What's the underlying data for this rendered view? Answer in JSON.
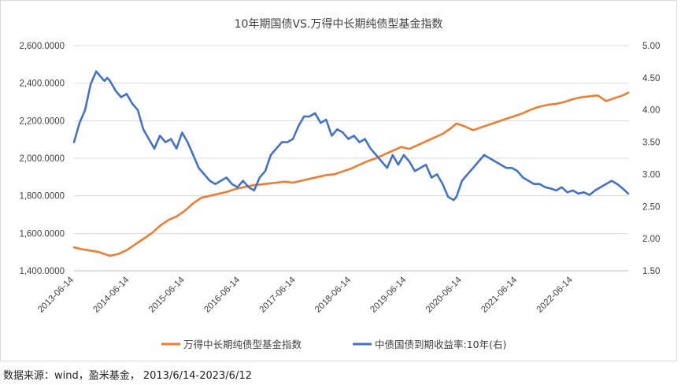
{
  "chart_data": {
    "type": "line",
    "title": "10年期国债VS.万得中长期纯债型基金指数",
    "x_tick_labels": [
      "2013-06-14",
      "2014-06-14",
      "2015-06-14",
      "2016-06-14",
      "2017-06-14",
      "2018-06-14",
      "2019-06-14",
      "2020-06-14",
      "2021-06-14",
      "2022-06-14"
    ],
    "x_range": [
      2013.45,
      2023.45
    ],
    "y_left": {
      "ticks": [
        "1,400.0000",
        "1,600.0000",
        "1,800.0000",
        "2,000.0000",
        "2,200.0000",
        "2,400.0000",
        "2,600.0000"
      ],
      "range": [
        1400,
        2600
      ]
    },
    "y_right": {
      "ticks": [
        "1.50",
        "2.00",
        "2.50",
        "3.00",
        "3.50",
        "4.00",
        "4.50",
        "5.00"
      ],
      "range": [
        1.5,
        5.0
      ]
    },
    "legend_placement": "bottom",
    "grid": "horizontal",
    "series": [
      {
        "name": "万得中长期纯债型基金指数",
        "axis": "left",
        "color": "#ED7D31",
        "x": [
          2013.45,
          2013.6,
          2013.75,
          2013.9,
          2014.0,
          2014.1,
          2014.25,
          2014.4,
          2014.55,
          2014.7,
          2014.85,
          2015.0,
          2015.15,
          2015.3,
          2015.45,
          2015.6,
          2015.75,
          2015.9,
          2016.05,
          2016.2,
          2016.35,
          2016.5,
          2016.65,
          2016.8,
          2016.95,
          2017.1,
          2017.25,
          2017.4,
          2017.55,
          2017.7,
          2017.85,
          2018.0,
          2018.15,
          2018.3,
          2018.45,
          2018.6,
          2018.75,
          2018.9,
          2019.05,
          2019.2,
          2019.35,
          2019.5,
          2019.65,
          2019.8,
          2019.95,
          2020.1,
          2020.25,
          2020.35,
          2020.5,
          2020.65,
          2020.8,
          2020.95,
          2021.1,
          2021.25,
          2021.4,
          2021.55,
          2021.7,
          2021.85,
          2022.0,
          2022.15,
          2022.3,
          2022.45,
          2022.6,
          2022.75,
          2022.9,
          2023.05,
          2023.2,
          2023.35,
          2023.45
        ],
        "values": [
          1525,
          1515,
          1508,
          1500,
          1490,
          1480,
          1490,
          1510,
          1540,
          1570,
          1600,
          1640,
          1670,
          1690,
          1720,
          1760,
          1790,
          1800,
          1810,
          1820,
          1835,
          1845,
          1855,
          1860,
          1865,
          1870,
          1875,
          1870,
          1880,
          1890,
          1900,
          1910,
          1915,
          1930,
          1945,
          1965,
          1985,
          2000,
          2020,
          2040,
          2060,
          2050,
          2070,
          2090,
          2110,
          2130,
          2160,
          2185,
          2170,
          2150,
          2165,
          2180,
          2195,
          2210,
          2225,
          2240,
          2260,
          2275,
          2285,
          2290,
          2300,
          2315,
          2325,
          2330,
          2335,
          2305,
          2320,
          2335,
          2350
        ]
      },
      {
        "name": "中债国债到期收益率:10年(右)",
        "axis": "right",
        "color": "#4472C4",
        "x": [
          2013.45,
          2013.55,
          2013.65,
          2013.75,
          2013.85,
          2013.95,
          2014.0,
          2014.05,
          2014.1,
          2014.2,
          2014.3,
          2014.4,
          2014.5,
          2014.6,
          2014.7,
          2014.8,
          2014.9,
          2015.0,
          2015.1,
          2015.2,
          2015.3,
          2015.4,
          2015.5,
          2015.6,
          2015.7,
          2015.8,
          2015.9,
          2016.0,
          2016.1,
          2016.2,
          2016.3,
          2016.4,
          2016.5,
          2016.6,
          2016.7,
          2016.8,
          2016.9,
          2017.0,
          2017.1,
          2017.2,
          2017.3,
          2017.4,
          2017.5,
          2017.6,
          2017.7,
          2017.8,
          2017.9,
          2018.0,
          2018.1,
          2018.2,
          2018.3,
          2018.4,
          2018.5,
          2018.6,
          2018.7,
          2018.8,
          2018.9,
          2019.0,
          2019.1,
          2019.2,
          2019.3,
          2019.4,
          2019.5,
          2019.6,
          2019.7,
          2019.8,
          2019.9,
          2020.0,
          2020.1,
          2020.2,
          2020.3,
          2020.35,
          2020.45,
          2020.55,
          2020.65,
          2020.75,
          2020.85,
          2020.95,
          2021.05,
          2021.15,
          2021.25,
          2021.35,
          2021.45,
          2021.55,
          2021.65,
          2021.75,
          2021.85,
          2021.95,
          2022.05,
          2022.15,
          2022.25,
          2022.35,
          2022.45,
          2022.55,
          2022.65,
          2022.75,
          2022.85,
          2022.95,
          2023.05,
          2023.15,
          2023.25,
          2023.35,
          2023.45
        ],
        "values": [
          3.5,
          3.8,
          4.0,
          4.4,
          4.6,
          4.5,
          4.45,
          4.5,
          4.45,
          4.3,
          4.2,
          4.25,
          4.1,
          4.0,
          3.7,
          3.55,
          3.4,
          3.6,
          3.5,
          3.55,
          3.4,
          3.65,
          3.5,
          3.3,
          3.1,
          3.0,
          2.9,
          2.85,
          2.9,
          2.95,
          2.85,
          2.8,
          2.9,
          2.8,
          2.75,
          2.95,
          3.05,
          3.3,
          3.4,
          3.5,
          3.5,
          3.55,
          3.75,
          3.9,
          3.9,
          3.95,
          3.8,
          3.85,
          3.6,
          3.7,
          3.65,
          3.55,
          3.6,
          3.5,
          3.55,
          3.4,
          3.3,
          3.2,
          3.1,
          3.3,
          3.15,
          3.3,
          3.2,
          3.05,
          3.1,
          3.15,
          2.95,
          3.0,
          2.85,
          2.65,
          2.6,
          2.65,
          2.9,
          3.0,
          3.1,
          3.2,
          3.3,
          3.25,
          3.2,
          3.15,
          3.1,
          3.1,
          3.05,
          2.95,
          2.9,
          2.85,
          2.85,
          2.8,
          2.78,
          2.75,
          2.8,
          2.72,
          2.75,
          2.7,
          2.72,
          2.68,
          2.75,
          2.8,
          2.85,
          2.9,
          2.85,
          2.78,
          2.7
        ]
      }
    ]
  },
  "source_text": "数据来源：wind，盈米基金，   2013/6/14-2023/6/12"
}
